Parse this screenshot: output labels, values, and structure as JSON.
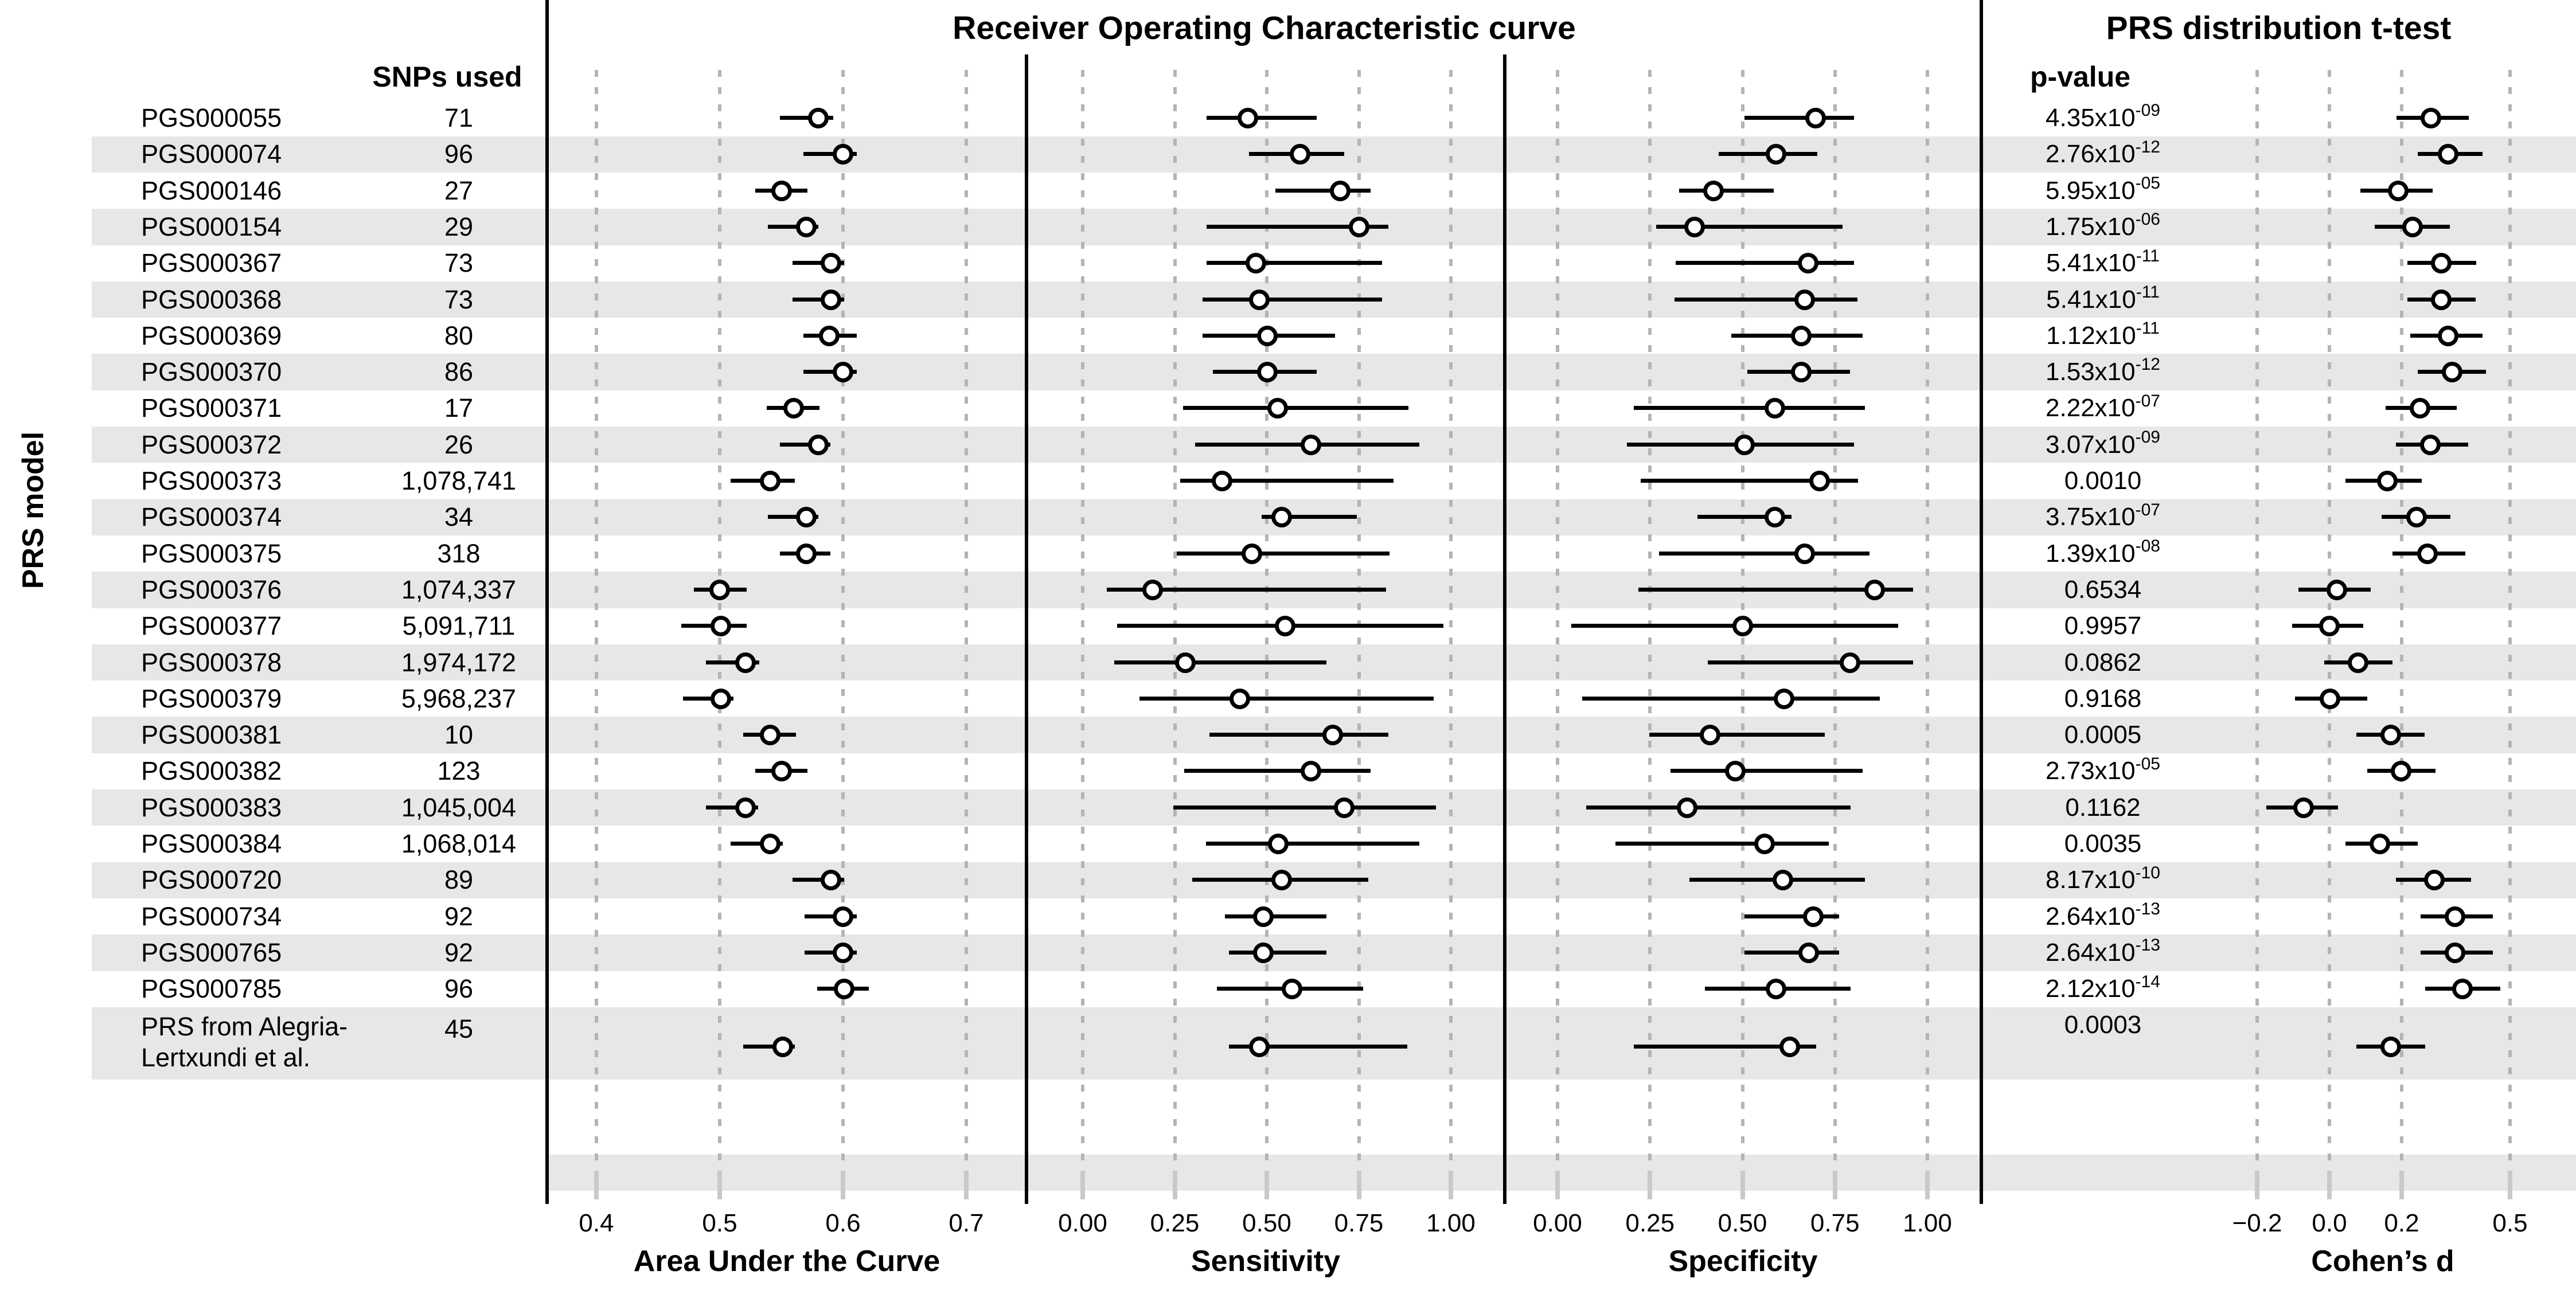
{
  "header": {
    "roc": "Receiver Operating Characteristic curve",
    "ttest": "PRS distribution t-test",
    "snps_used": "SNPs used",
    "p_value": "p-value",
    "y_axis": "PRS model"
  },
  "colors": {
    "stripe": "#e7e7e7",
    "gridline": "#b4b4b4",
    "tick": "#c9c9c9",
    "text": "#000000",
    "marker_fill": "#ffffff",
    "marker_stroke": "#000000"
  },
  "chart_data": {
    "type": "forest",
    "title": "Receiver Operating Characteristic curve / PRS distribution t-test",
    "legend_position": "none",
    "grid": "dotted-vertical",
    "panels": {
      "auc": {
        "xlabel": "Area Under the Curve",
        "tick_values": [
          0.4,
          0.5,
          0.6,
          0.7
        ],
        "tick_labels": [
          "0.4",
          "0.5",
          "0.6",
          "0.7"
        ],
        "xlim": [
          0.36,
          0.75
        ]
      },
      "sens": {
        "xlabel": "Sensitivity",
        "tick_values": [
          0.0,
          0.25,
          0.5,
          0.75,
          1.0
        ],
        "tick_labels": [
          "0.00",
          "0.25",
          "0.50",
          "0.75",
          "1.00"
        ],
        "xlim": [
          -0.15,
          1.15
        ]
      },
      "spec": {
        "xlabel": "Specificity",
        "tick_values": [
          0.0,
          0.25,
          0.5,
          0.75,
          1.0
        ],
        "tick_labels": [
          "0.00",
          "0.25",
          "0.50",
          "0.75",
          "1.00"
        ],
        "xlim": [
          -0.15,
          1.15
        ]
      },
      "d": {
        "xlabel": "Cohen’s d",
        "tick_values": [
          -0.2,
          0.0,
          0.2,
          0.5
        ],
        "tick_labels": [
          "−0.2",
          "0.0",
          "0.2",
          "0.5"
        ],
        "xlim": [
          -0.25,
          0.55
        ]
      }
    },
    "rows": [
      {
        "model": "PGS000055",
        "model2": null,
        "snps": "71",
        "p": "4.35x10",
        "p_exp": "-09",
        "auc": [
          0.58,
          0.549,
          0.592
        ],
        "sens": [
          0.448,
          0.337,
          0.635
        ],
        "spec": [
          0.698,
          0.506,
          0.801
        ],
        "d": [
          0.281,
          0.185,
          0.385
        ]
      },
      {
        "model": "PGS000074",
        "model2": null,
        "snps": "96",
        "p": "2.76x10",
        "p_exp": "-12",
        "auc": [
          0.6,
          0.568,
          0.611
        ],
        "sens": [
          0.59,
          0.452,
          0.711
        ],
        "spec": [
          0.59,
          0.436,
          0.703
        ],
        "d": [
          0.329,
          0.245,
          0.424
        ]
      },
      {
        "model": "PGS000146",
        "model2": null,
        "snps": "27",
        "p": "5.95x10",
        "p_exp": "-05",
        "auc": [
          0.55,
          0.529,
          0.571
        ],
        "sens": [
          0.7,
          0.523,
          0.782
        ],
        "spec": [
          0.422,
          0.328,
          0.584
        ],
        "d": [
          0.19,
          0.085,
          0.285
        ]
      },
      {
        "model": "PGS000154",
        "model2": null,
        "snps": "29",
        "p": "1.75x10",
        "p_exp": "-06",
        "auc": [
          0.57,
          0.539,
          0.58
        ],
        "sens": [
          0.751,
          0.337,
          0.831
        ],
        "spec": [
          0.37,
          0.267,
          0.771
        ],
        "d": [
          0.23,
          0.125,
          0.333
        ]
      },
      {
        "model": "PGS000367",
        "model2": null,
        "snps": "73",
        "p": "5.41x10",
        "p_exp": "-11",
        "auc": [
          0.59,
          0.559,
          0.601
        ],
        "sens": [
          0.47,
          0.337,
          0.813
        ],
        "spec": [
          0.678,
          0.319,
          0.801
        ],
        "d": [
          0.309,
          0.216,
          0.406
        ]
      },
      {
        "model": "PGS000368",
        "model2": null,
        "snps": "73",
        "p": "5.41x10",
        "p_exp": "-11",
        "auc": [
          0.59,
          0.559,
          0.601
        ],
        "sens": [
          0.479,
          0.326,
          0.813
        ],
        "spec": [
          0.668,
          0.316,
          0.811
        ],
        "d": [
          0.309,
          0.216,
          0.404
        ]
      },
      {
        "model": "PGS000369",
        "model2": null,
        "snps": "80",
        "p": "1.12x10",
        "p_exp": "-11",
        "auc": [
          0.589,
          0.568,
          0.611
        ],
        "sens": [
          0.501,
          0.326,
          0.686
        ],
        "spec": [
          0.659,
          0.469,
          0.825
        ],
        "d": [
          0.329,
          0.224,
          0.424
        ]
      },
      {
        "model": "PGS000370",
        "model2": null,
        "snps": "86",
        "p": "1.53x10",
        "p_exp": "-12",
        "auc": [
          0.6,
          0.568,
          0.611
        ],
        "sens": [
          0.501,
          0.354,
          0.635
        ],
        "spec": [
          0.659,
          0.513,
          0.79
        ],
        "d": [
          0.339,
          0.245,
          0.433
        ]
      },
      {
        "model": "PGS000371",
        "model2": null,
        "snps": "17",
        "p": "2.22x10",
        "p_exp": "-07",
        "auc": [
          0.56,
          0.538,
          0.581
        ],
        "sens": [
          0.53,
          0.272,
          0.884
        ],
        "spec": [
          0.588,
          0.206,
          0.831
        ],
        "d": [
          0.25,
          0.155,
          0.353
        ]
      },
      {
        "model": "PGS000372",
        "model2": null,
        "snps": "26",
        "p": "3.07x10",
        "p_exp": "-09",
        "auc": [
          0.58,
          0.549,
          0.59
        ],
        "sens": [
          0.62,
          0.305,
          0.915
        ],
        "spec": [
          0.506,
          0.187,
          0.801
        ],
        "d": [
          0.279,
          0.184,
          0.384
        ]
      },
      {
        "model": "PGS000373",
        "model2": null,
        "snps": "1,078,741",
        "p": "0.0010",
        "p_exp": null,
        "auc": [
          0.541,
          0.509,
          0.561
        ],
        "sens": [
          0.379,
          0.265,
          0.844
        ],
        "spec": [
          0.709,
          0.225,
          0.813
        ],
        "d": [
          0.161,
          0.044,
          0.255
        ]
      },
      {
        "model": "PGS000374",
        "model2": null,
        "snps": "34",
        "p": "3.75x10",
        "p_exp": "-07",
        "auc": [
          0.57,
          0.539,
          0.58
        ],
        "sens": [
          0.54,
          0.486,
          0.744
        ],
        "spec": [
          0.588,
          0.378,
          0.633
        ],
        "d": [
          0.241,
          0.145,
          0.335
        ]
      },
      {
        "model": "PGS000375",
        "model2": null,
        "snps": "318",
        "p": "1.39x10",
        "p_exp": "-08",
        "auc": [
          0.57,
          0.549,
          0.59
        ],
        "sens": [
          0.459,
          0.255,
          0.833
        ],
        "spec": [
          0.668,
          0.275,
          0.843
        ],
        "d": [
          0.271,
          0.174,
          0.376
        ]
      },
      {
        "model": "PGS000376",
        "model2": null,
        "snps": "1,074,337",
        "p": "0.6534",
        "p_exp": null,
        "auc": [
          0.5,
          0.479,
          0.522
        ],
        "sens": [
          0.19,
          0.065,
          0.824
        ],
        "spec": [
          0.858,
          0.218,
          0.961
        ],
        "d": [
          0.02,
          -0.085,
          0.115
        ]
      },
      {
        "model": "PGS000377",
        "model2": null,
        "snps": "5,091,711",
        "p": "0.9957",
        "p_exp": null,
        "auc": [
          0.501,
          0.469,
          0.522
        ],
        "sens": [
          0.55,
          0.094,
          0.979
        ],
        "spec": [
          0.5,
          0.037,
          0.921
        ],
        "d": [
          0.0,
          -0.103,
          0.094
        ]
      },
      {
        "model": "PGS000378",
        "model2": null,
        "snps": "1,974,172",
        "p": "0.0862",
        "p_exp": null,
        "auc": [
          0.521,
          0.489,
          0.532
        ],
        "sens": [
          0.279,
          0.085,
          0.662
        ],
        "spec": [
          0.79,
          0.406,
          0.961
        ],
        "d": [
          0.079,
          -0.014,
          0.174
        ]
      },
      {
        "model": "PGS000379",
        "model2": null,
        "snps": "5,968,237",
        "p": "0.9168",
        "p_exp": null,
        "auc": [
          0.501,
          0.47,
          0.511
        ],
        "sens": [
          0.427,
          0.154,
          0.953
        ],
        "spec": [
          0.612,
          0.066,
          0.872
        ],
        "d": [
          0.002,
          -0.095,
          0.105
        ]
      },
      {
        "model": "PGS000381",
        "model2": null,
        "snps": "10",
        "p": "0.0005",
        "p_exp": null,
        "auc": [
          0.541,
          0.519,
          0.562
        ],
        "sens": [
          0.679,
          0.344,
          0.831
        ],
        "spec": [
          0.412,
          0.248,
          0.722
        ],
        "d": [
          0.17,
          0.075,
          0.264
        ]
      },
      {
        "model": "PGS000382",
        "model2": null,
        "snps": "123",
        "p": "2.73x10",
        "p_exp": "-05",
        "auc": [
          0.55,
          0.529,
          0.571
        ],
        "sens": [
          0.62,
          0.276,
          0.782
        ],
        "spec": [
          0.481,
          0.306,
          0.825
        ],
        "d": [
          0.198,
          0.105,
          0.293
        ]
      },
      {
        "model": "PGS000383",
        "model2": null,
        "snps": "1,045,004",
        "p": "0.1162",
        "p_exp": null,
        "auc": [
          0.521,
          0.489,
          0.531
        ],
        "sens": [
          0.711,
          0.246,
          0.96
        ],
        "spec": [
          0.351,
          0.078,
          0.792
        ],
        "d": [
          -0.071,
          -0.174,
          0.024
        ]
      },
      {
        "model": "PGS000384",
        "model2": null,
        "snps": "1,068,014",
        "p": "0.0035",
        "p_exp": null,
        "auc": [
          0.541,
          0.509,
          0.551
        ],
        "sens": [
          0.531,
          0.335,
          0.915
        ],
        "spec": [
          0.56,
          0.157,
          0.734
        ],
        "d": [
          0.139,
          0.045,
          0.244
        ]
      },
      {
        "model": "PGS000720",
        "model2": null,
        "snps": "89",
        "p": "8.17x10",
        "p_exp": "-10",
        "auc": [
          0.59,
          0.559,
          0.601
        ],
        "sens": [
          0.54,
          0.297,
          0.775
        ],
        "spec": [
          0.609,
          0.356,
          0.831
        ],
        "d": [
          0.291,
          0.184,
          0.392
        ]
      },
      {
        "model": "PGS000734",
        "model2": null,
        "snps": "92",
        "p": "2.64x10",
        "p_exp": "-13",
        "auc": [
          0.6,
          0.569,
          0.611
        ],
        "sens": [
          0.49,
          0.386,
          0.662
        ],
        "spec": [
          0.691,
          0.506,
          0.762
        ],
        "d": [
          0.348,
          0.252,
          0.453
        ]
      },
      {
        "model": "PGS000765",
        "model2": null,
        "snps": "92",
        "p": "2.64x10",
        "p_exp": "-13",
        "auc": [
          0.6,
          0.569,
          0.611
        ],
        "sens": [
          0.49,
          0.397,
          0.662
        ],
        "spec": [
          0.679,
          0.506,
          0.762
        ],
        "d": [
          0.348,
          0.252,
          0.453
        ]
      },
      {
        "model": "PGS000785",
        "model2": null,
        "snps": "96",
        "p": "2.12x10",
        "p_exp": "-14",
        "auc": [
          0.601,
          0.579,
          0.621
        ],
        "sens": [
          0.568,
          0.365,
          0.762
        ],
        "spec": [
          0.59,
          0.398,
          0.792
        ],
        "d": [
          0.368,
          0.265,
          0.473
        ]
      },
      {
        "model": "PRS from Alegria-",
        "model2": "Lertxundi et al.",
        "snps": "45",
        "p": "0.0003",
        "p_exp": null,
        "auc": [
          0.551,
          0.519,
          0.561
        ],
        "sens": [
          0.479,
          0.397,
          0.881
        ],
        "spec": [
          0.628,
          0.206,
          0.7
        ],
        "d": [
          0.17,
          0.075,
          0.265
        ]
      }
    ]
  }
}
